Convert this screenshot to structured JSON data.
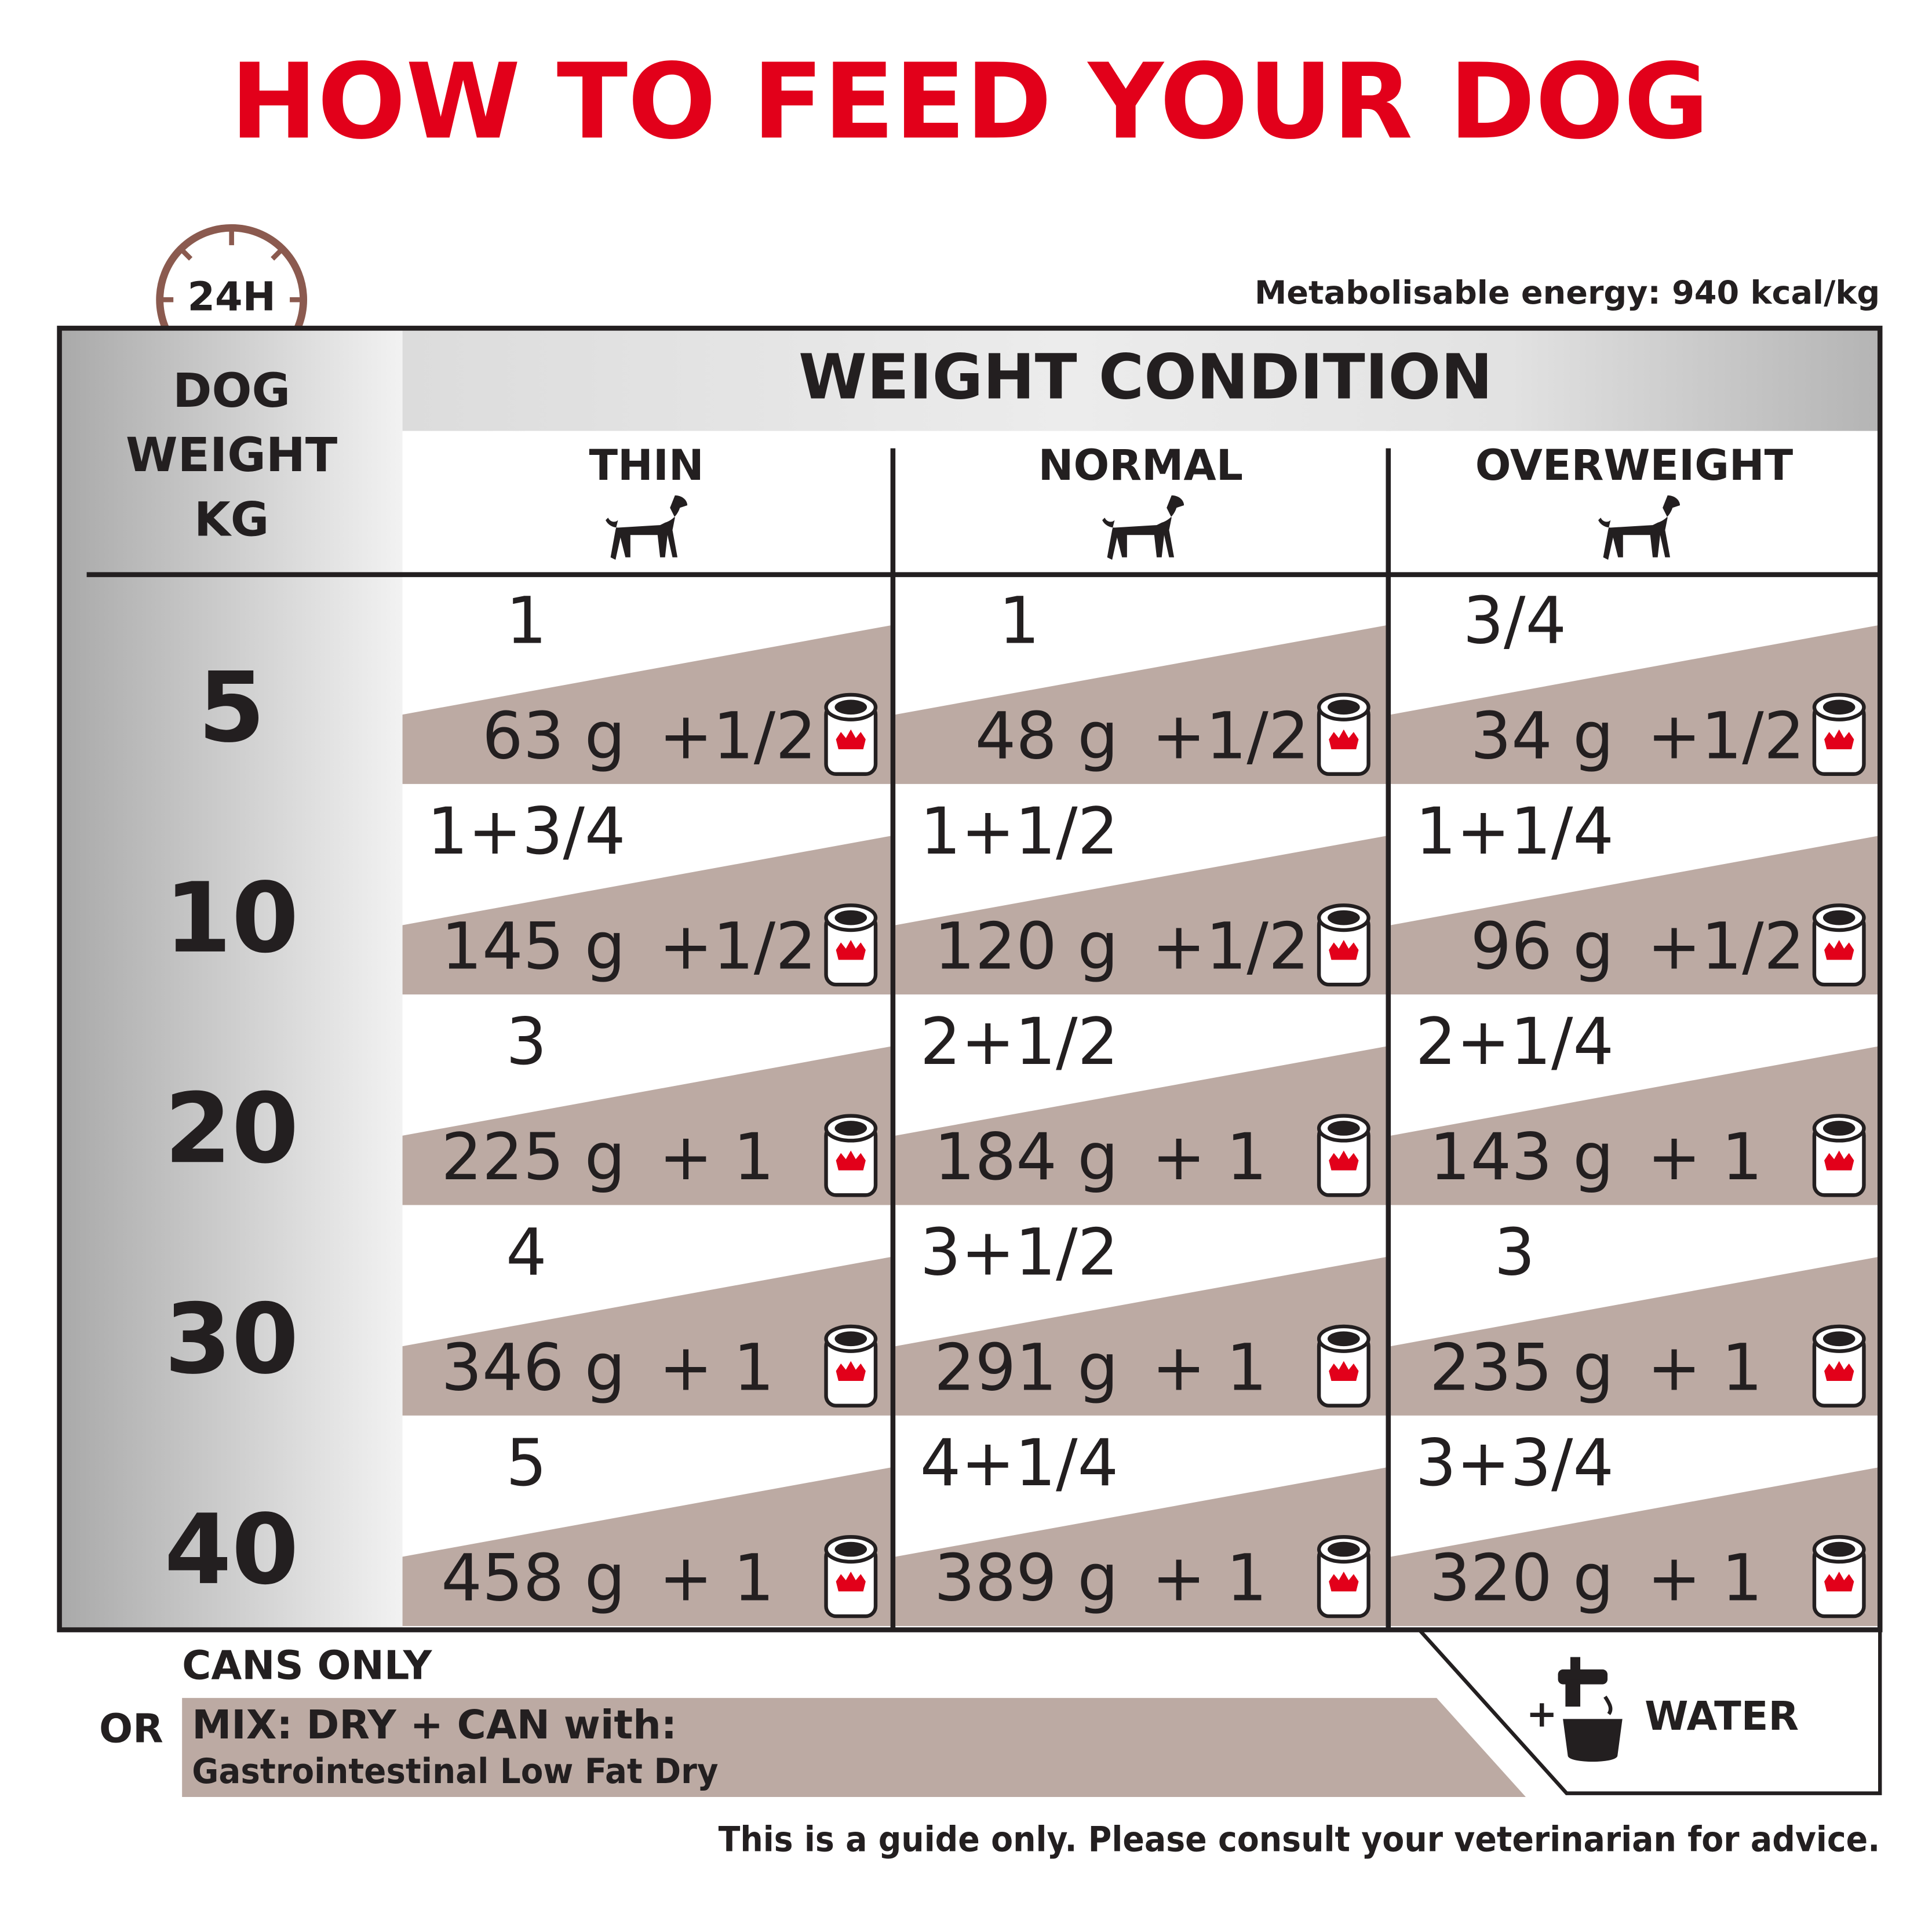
{
  "title": "HOW TO FEED YOUR DOG",
  "clock_label": "24H",
  "energy": "Metabolisable energy: 940 kcal/kg",
  "table": {
    "corner": [
      "DOG",
      "WEIGHT",
      "KG"
    ],
    "group_header": "WEIGHT CONDITION",
    "columns": [
      "THIN",
      "NORMAL",
      "OVERWEIGHT"
    ],
    "rows": [
      {
        "weight": 5,
        "cells": [
          {
            "dry": "1",
            "can": "63 g",
            "cans": "+1/2"
          },
          {
            "dry": "1",
            "can": "48 g",
            "cans": "+1/2"
          },
          {
            "dry": "3/4",
            "can": "34 g",
            "cans": "+1/2"
          }
        ]
      },
      {
        "weight": 10,
        "cells": [
          {
            "dry": "1+3/4",
            "can": "145 g",
            "cans": "+1/2"
          },
          {
            "dry": "1+1/2",
            "can": "120 g",
            "cans": "+1/2"
          },
          {
            "dry": "1+1/4",
            "can": "96 g",
            "cans": "+1/2"
          }
        ]
      },
      {
        "weight": 20,
        "cells": [
          {
            "dry": "3",
            "can": "225 g",
            "cans": "+ 1"
          },
          {
            "dry": "2+1/2",
            "can": "184 g",
            "cans": "+ 1"
          },
          {
            "dry": "2+1/4",
            "can": "143 g",
            "cans": "+ 1"
          }
        ]
      },
      {
        "weight": 30,
        "cells": [
          {
            "dry": "4",
            "can": "346 g",
            "cans": "+ 1"
          },
          {
            "dry": "3+1/2",
            "can": "291 g",
            "cans": "+ 1"
          },
          {
            "dry": "3",
            "can": "235 g",
            "cans": "+ 1"
          }
        ]
      },
      {
        "weight": 40,
        "cells": [
          {
            "dry": "5",
            "can": "458 g",
            "cans": "+ 1"
          },
          {
            "dry": "4+1/4",
            "can": "389 g",
            "cans": "+ 1"
          },
          {
            "dry": "3+3/4",
            "can": "320 g",
            "cans": "+ 1"
          }
        ]
      }
    ]
  },
  "footer": {
    "cans_only": "CANS ONLY",
    "or": "OR",
    "mix": "MIX: DRY + CAN with:",
    "product": "Gastrointestinal Low Fat Dry",
    "plus": "+",
    "water": "WATER"
  },
  "disclaimer": "This is a guide only. Please consult your veterinarian for advice."
}
